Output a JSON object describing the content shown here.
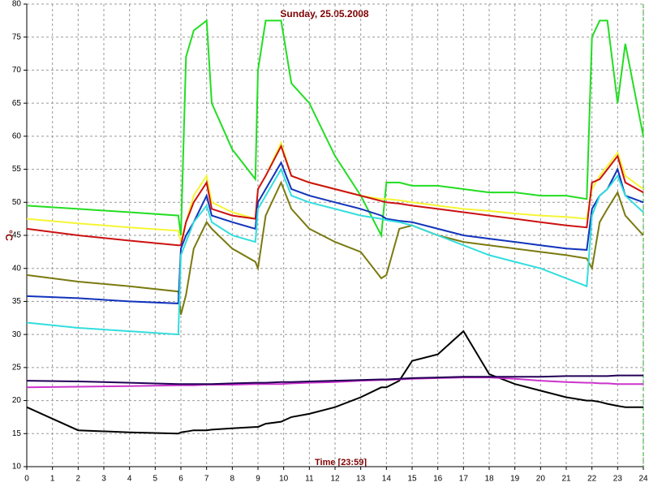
{
  "chart_data": {
    "type": "line",
    "title": "Sunday, 25.05.2008",
    "x_label": "Time [23:59]",
    "y_label": "°C",
    "x": [
      0,
      2,
      4,
      5.9,
      6.0,
      6.2,
      6.5,
      7.0,
      7.2,
      8,
      8.9,
      9.0,
      9.3,
      9.9,
      10.3,
      11,
      12,
      13,
      13.8,
      14.0,
      14.5,
      15,
      16,
      17,
      18,
      19,
      20,
      21,
      21.8,
      22.0,
      22.3,
      22.6,
      23.0,
      23.3,
      24
    ],
    "series": [
      {
        "color": "#22dd22",
        "values": [
          49.5,
          49,
          48.5,
          48,
          45,
          72,
          76,
          77.5,
          65,
          58,
          53.5,
          70,
          77.5,
          77.5,
          68,
          65,
          57,
          51,
          45,
          53,
          53,
          52.5,
          52.5,
          52,
          51.5,
          51.5,
          51,
          51,
          50.5,
          75,
          77.5,
          77.5,
          65,
          74,
          60
        ]
      },
      {
        "color": "#f5f535",
        "values": [
          47.5,
          46.8,
          46.2,
          45.7,
          44,
          47,
          51,
          54,
          50,
          48.5,
          47.5,
          52,
          54,
          59,
          54,
          53,
          52,
          51,
          50.5,
          50.5,
          50.3,
          50,
          49.5,
          49,
          48.7,
          48.3,
          48,
          47.8,
          47.5,
          52,
          54,
          55.5,
          57.5,
          54,
          52
        ]
      },
      {
        "color": "#cc1111",
        "values": [
          46,
          45,
          44.2,
          43.5,
          43.5,
          47,
          50,
          53,
          49,
          48,
          47.5,
          52,
          54,
          58.5,
          54,
          53,
          52,
          51,
          50.2,
          50,
          49.8,
          49.5,
          49,
          48.5,
          48,
          47.5,
          47,
          46.5,
          46.2,
          53,
          53.5,
          55,
          57,
          53,
          51.5
        ]
      },
      {
        "color": "#7a7a10",
        "values": [
          39,
          38,
          37.3,
          36.5,
          33,
          36,
          43,
          47,
          46,
          43,
          41,
          40,
          48,
          53,
          49,
          46,
          44,
          42.5,
          38.5,
          39,
          46,
          46.5,
          45,
          44,
          43.5,
          43,
          42.5,
          42,
          41.5,
          40,
          47,
          49,
          51.5,
          48,
          45
        ]
      },
      {
        "color": "#1133bb",
        "values": [
          35.8,
          35.5,
          35,
          34.7,
          43,
          45,
          47,
          51,
          48,
          47,
          46,
          50,
          52,
          56,
          52,
          51,
          50,
          49,
          48,
          47.5,
          47.2,
          47,
          46,
          45,
          44.5,
          44,
          43.5,
          43,
          42.8,
          49,
          51,
          52,
          55,
          51,
          50
        ]
      },
      {
        "color": "#33dddd",
        "values": [
          31.8,
          31,
          30.5,
          30,
          42,
          44,
          47,
          49.5,
          47,
          45,
          44,
          49,
          51,
          55,
          51,
          50,
          49,
          48,
          47.5,
          47.3,
          47,
          46.5,
          45,
          43.5,
          42,
          41,
          40,
          38.5,
          37.3,
          48,
          51,
          52,
          54,
          51,
          48.5
        ]
      },
      {
        "color": "#000000",
        "values": [
          19,
          15.5,
          15.2,
          15,
          15.2,
          15.3,
          15.5,
          15.5,
          15.6,
          15.8,
          16,
          16,
          16.5,
          16.8,
          17.5,
          18,
          19,
          20.5,
          22,
          22,
          23,
          26,
          27,
          30.5,
          24,
          22.5,
          21.5,
          20.5,
          20,
          20,
          19.8,
          19.5,
          19.2,
          19,
          19
        ]
      },
      {
        "color": "#cc33cc",
        "values": [
          22,
          22.1,
          22.2,
          22.3,
          22.3,
          22.3,
          22.3,
          22.4,
          22.4,
          22.4,
          22.5,
          22.5,
          22.5,
          22.5,
          22.6,
          22.7,
          22.8,
          23,
          23.1,
          23.1,
          23.2,
          23.3,
          23.4,
          23.5,
          23.5,
          23.3,
          23,
          22.8,
          22.7,
          22.7,
          22.6,
          22.6,
          22.5,
          22.5,
          22.5
        ]
      },
      {
        "color": "#220055",
        "values": [
          23,
          22.9,
          22.7,
          22.5,
          22.5,
          22.5,
          22.5,
          22.5,
          22.5,
          22.6,
          22.7,
          22.7,
          22.7,
          22.8,
          22.8,
          22.9,
          23,
          23.1,
          23.2,
          23.2,
          23.3,
          23.4,
          23.5,
          23.6,
          23.6,
          23.6,
          23.6,
          23.7,
          23.7,
          23.7,
          23.7,
          23.7,
          23.8,
          23.8,
          23.8
        ]
      }
    ],
    "xlim": [
      0,
      24
    ],
    "xticks": [
      0,
      1,
      2,
      3,
      4,
      5,
      6,
      7,
      8,
      9,
      10,
      11,
      12,
      13,
      14,
      15,
      16,
      17,
      18,
      19,
      20,
      21,
      22,
      23,
      24
    ],
    "ylim": [
      10,
      80
    ],
    "yticks": [
      10,
      15,
      20,
      25,
      30,
      35,
      40,
      45,
      50,
      55,
      60,
      65,
      70,
      75,
      80
    ],
    "grid": true
  }
}
